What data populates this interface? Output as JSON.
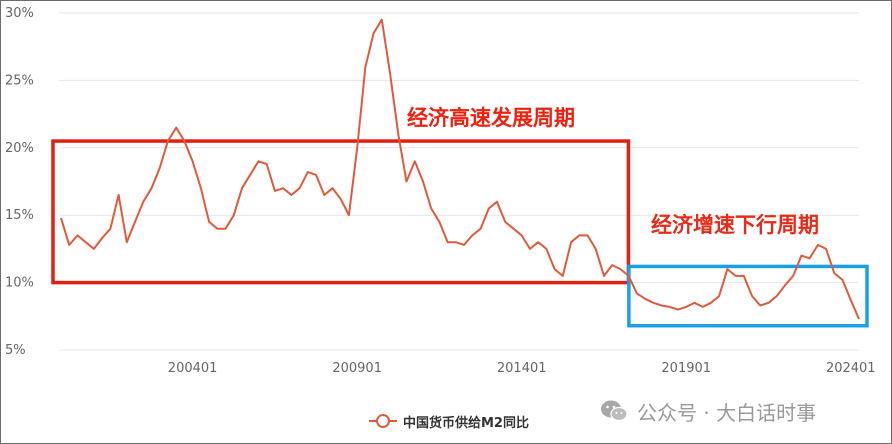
{
  "chart_data": {
    "type": "line",
    "title": "",
    "xlabel": "",
    "ylabel": "",
    "ylim": [
      0.05,
      0.3
    ],
    "y_tick_labels": [
      "30%",
      "25%",
      "20%",
      "15%",
      "10%",
      "5%"
    ],
    "y_tick_values": [
      0.3,
      0.25,
      0.2,
      0.15,
      0.1,
      0.05
    ],
    "x_tick_labels": [
      "200401",
      "200901",
      "201401",
      "201901",
      "202401"
    ],
    "grid": "horizontal",
    "legend_position": "bottom",
    "series": [
      {
        "name": "中国货币供给M2同比",
        "color": "#e15a3c",
        "x": [
          "2000-01",
          "2000-04",
          "2000-07",
          "2000-10",
          "2001-01",
          "2001-04",
          "2001-07",
          "2001-10",
          "2002-01",
          "2002-04",
          "2002-07",
          "2002-10",
          "2003-01",
          "2003-04",
          "2003-07",
          "2003-10",
          "2004-01",
          "2004-04",
          "2004-07",
          "2004-10",
          "2005-01",
          "2005-04",
          "2005-07",
          "2005-10",
          "2006-01",
          "2006-04",
          "2006-07",
          "2006-10",
          "2007-01",
          "2007-04",
          "2007-07",
          "2007-10",
          "2008-01",
          "2008-04",
          "2008-07",
          "2008-10",
          "2009-01",
          "2009-04",
          "2009-07",
          "2009-10",
          "2010-01",
          "2010-04",
          "2010-07",
          "2010-10",
          "2011-01",
          "2011-04",
          "2011-07",
          "2011-10",
          "2012-01",
          "2012-04",
          "2012-07",
          "2012-10",
          "2013-01",
          "2013-04",
          "2013-07",
          "2013-10",
          "2014-01",
          "2014-04",
          "2014-07",
          "2014-10",
          "2015-01",
          "2015-04",
          "2015-07",
          "2015-10",
          "2016-01",
          "2016-04",
          "2016-07",
          "2016-10",
          "2017-01",
          "2017-04",
          "2017-07",
          "2017-10",
          "2018-01",
          "2018-04",
          "2018-07",
          "2018-10",
          "2019-01",
          "2019-04",
          "2019-07",
          "2019-10",
          "2020-01",
          "2020-04",
          "2020-07",
          "2020-10",
          "2021-01",
          "2021-04",
          "2021-07",
          "2021-10",
          "2022-01",
          "2022-04",
          "2022-07",
          "2022-10",
          "2023-01",
          "2023-04",
          "2023-07",
          "2023-10",
          "2024-01",
          "2024-04"
        ],
        "values": [
          0.148,
          0.128,
          0.135,
          0.13,
          0.125,
          0.133,
          0.14,
          0.165,
          0.13,
          0.145,
          0.16,
          0.17,
          0.185,
          0.205,
          0.215,
          0.205,
          0.19,
          0.17,
          0.145,
          0.14,
          0.14,
          0.15,
          0.17,
          0.18,
          0.19,
          0.188,
          0.168,
          0.17,
          0.165,
          0.17,
          0.182,
          0.18,
          0.165,
          0.17,
          0.162,
          0.15,
          0.2,
          0.26,
          0.285,
          0.295,
          0.255,
          0.21,
          0.175,
          0.19,
          0.175,
          0.155,
          0.145,
          0.13,
          0.13,
          0.128,
          0.135,
          0.14,
          0.155,
          0.16,
          0.145,
          0.14,
          0.135,
          0.125,
          0.13,
          0.125,
          0.11,
          0.105,
          0.13,
          0.135,
          0.135,
          0.125,
          0.105,
          0.113,
          0.11,
          0.105,
          0.092,
          0.088,
          0.085,
          0.083,
          0.082,
          0.08,
          0.082,
          0.085,
          0.082,
          0.085,
          0.09,
          0.11,
          0.105,
          0.105,
          0.09,
          0.083,
          0.085,
          0.09,
          0.098,
          0.105,
          0.12,
          0.118,
          0.128,
          0.125,
          0.107,
          0.102,
          0.087,
          0.073
        ]
      }
    ],
    "annotations": [
      {
        "text": "经济高速发展周期",
        "color": "#f02010"
      },
      {
        "text": "经济增速下行周期",
        "color": "#e82a1a"
      }
    ],
    "highlight_boxes": [
      {
        "color": "#e02010",
        "x_start": "2000-01",
        "x_end": "2017-01",
        "y_low": 0.1,
        "y_high": 0.205
      },
      {
        "color": "#1aa0e6",
        "x_start": "2017-07",
        "x_end": "2024-04",
        "y_low": 0.068,
        "y_high": 0.112
      }
    ]
  },
  "legend": {
    "label": "中国货币供给M2同比"
  },
  "watermark": {
    "text": "公众号 · 大白话时事",
    "icon": "wechat-icon"
  }
}
